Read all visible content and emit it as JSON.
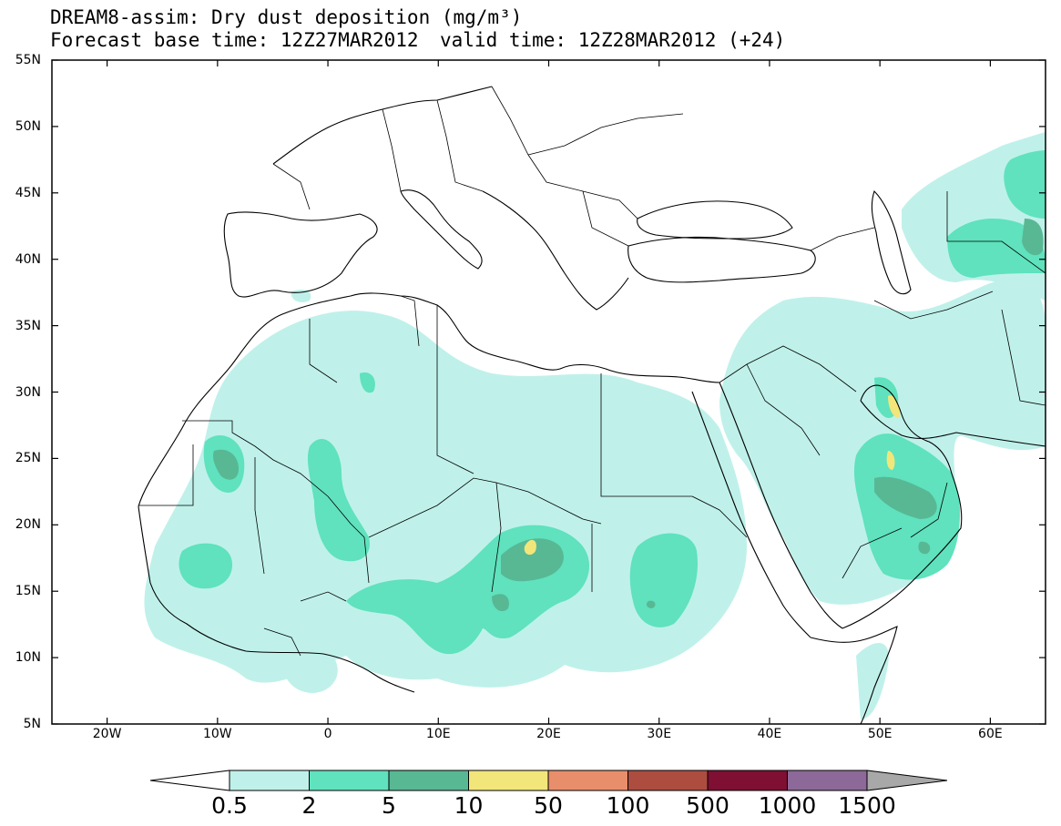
{
  "title": {
    "line1": "DREAM8-assim: Dry dust deposition (mg/m³)",
    "forecast_base": "Forecast base time: 12Z27MAR2012",
    "valid_time": "valid time: 12Z28MAR2012 (+24)"
  },
  "map": {
    "lat_range": [
      5,
      55
    ],
    "lon_range": [
      -25,
      65
    ],
    "lat_ticks": [
      "55N",
      "50N",
      "45N",
      "40N",
      "35N",
      "30N",
      "25N",
      "20N",
      "15N",
      "10N",
      "5N"
    ],
    "lon_ticks": [
      "20W",
      "10W",
      "0",
      "10E",
      "20E",
      "30E",
      "40E",
      "50E",
      "60E"
    ],
    "land_color": "#ffffff",
    "border_color": "#000000"
  },
  "legend": {
    "levels": [
      "0.5",
      "2",
      "5",
      "10",
      "50",
      "100",
      "500",
      "1000",
      "1500"
    ],
    "colors": [
      "#bff1ea",
      "#5fe2bd",
      "#58b894",
      "#f2e67a",
      "#e98e6a",
      "#ad4d3f",
      "#7f0f33",
      "#8c6999",
      "#a8a8a8"
    ],
    "underflow_color": "#ffffff"
  }
}
